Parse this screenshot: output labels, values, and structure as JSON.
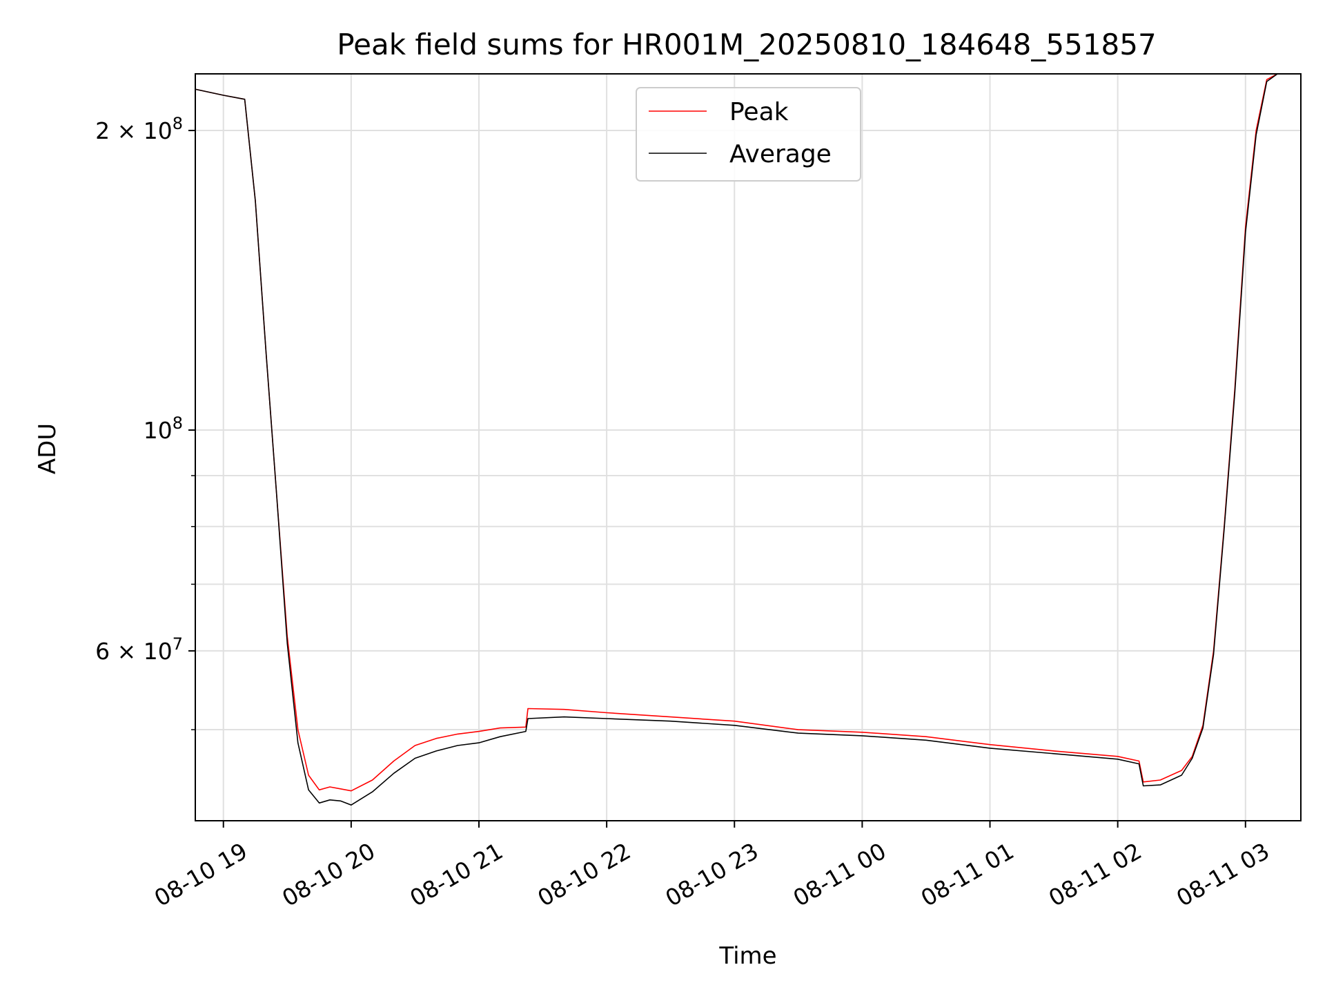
{
  "chart_data": {
    "type": "line",
    "title": "Peak field sums for HR001M_20250810_184648_551857",
    "xlabel": "Time",
    "ylabel": "ADU",
    "yscale": "log",
    "grid": true,
    "legend_position": "top-center",
    "x_ticks": [
      "08-10 19",
      "08-10 20",
      "08-10 21",
      "08-10 22",
      "08-10 23",
      "08-11 00",
      "08-11 01",
      "08-11 02",
      "08-11 03"
    ],
    "y_ticks": [
      {
        "value": 60000000,
        "mantissa": "6",
        "base": "10",
        "exp": "7"
      },
      {
        "value": 100000000,
        "mantissa": "",
        "base": "10",
        "exp": "8"
      },
      {
        "value": 200000000,
        "mantissa": "2",
        "base": "10",
        "exp": "8"
      }
    ],
    "xlim": [
      "2025-08-10T18:46:48",
      "2025-08-11T03:26:00"
    ],
    "ylim": [
      40500000,
      228000000
    ],
    "x": [
      "2025-08-10T18:47:00",
      "2025-08-10T19:00:00",
      "2025-08-10T19:10:00",
      "2025-08-10T19:15:00",
      "2025-08-10T19:20:00",
      "2025-08-10T19:25:00",
      "2025-08-10T19:30:00",
      "2025-08-10T19:35:00",
      "2025-08-10T19:40:00",
      "2025-08-10T19:45:00",
      "2025-08-10T19:50:00",
      "2025-08-10T19:55:00",
      "2025-08-10T20:00:00",
      "2025-08-10T20:10:00",
      "2025-08-10T20:20:00",
      "2025-08-10T20:30:00",
      "2025-08-10T20:40:00",
      "2025-08-10T20:50:00",
      "2025-08-10T21:00:00",
      "2025-08-10T21:10:00",
      "2025-08-10T21:22:00",
      "2025-08-10T21:23:00",
      "2025-08-10T21:40:00",
      "2025-08-10T22:00:00",
      "2025-08-10T22:30:00",
      "2025-08-10T23:00:00",
      "2025-08-10T23:30:00",
      "2025-08-11T00:00:00",
      "2025-08-11T00:30:00",
      "2025-08-11T01:00:00",
      "2025-08-11T01:30:00",
      "2025-08-11T02:00:00",
      "2025-08-11T02:10:00",
      "2025-08-11T02:12:00",
      "2025-08-11T02:20:00",
      "2025-08-11T02:30:00",
      "2025-08-11T02:35:00",
      "2025-08-11T02:40:00",
      "2025-08-11T02:45:00",
      "2025-08-11T02:50:00",
      "2025-08-11T02:55:00",
      "2025-08-11T03:00:00",
      "2025-08-11T03:05:00",
      "2025-08-11T03:10:00",
      "2025-08-11T03:15:00"
    ],
    "series": [
      {
        "name": "Peak",
        "color": "#ff0000",
        "values": [
          220000000,
          217000000,
          215000000,
          170000000,
          120000000,
          86000000,
          62000000,
          50000000,
          45000000,
          43500000,
          43800000,
          43600000,
          43400000,
          44500000,
          46500000,
          48200000,
          49000000,
          49500000,
          49800000,
          50200000,
          50300000,
          52500000,
          52400000,
          52000000,
          51500000,
          51000000,
          50000000,
          49700000,
          49200000,
          48300000,
          47600000,
          47000000,
          46500000,
          44300000,
          44500000,
          45500000,
          47000000,
          50500000,
          60000000,
          80000000,
          110000000,
          160000000,
          200000000,
          225000000,
          228000000
        ]
      },
      {
        "name": "Average",
        "color": "#000000",
        "values": [
          220000000,
          217000000,
          215000000,
          170000000,
          120000000,
          86000000,
          61000000,
          48500000,
          43500000,
          42200000,
          42500000,
          42400000,
          42000000,
          43300000,
          45200000,
          46800000,
          47600000,
          48200000,
          48500000,
          49200000,
          49800000,
          51300000,
          51500000,
          51300000,
          51000000,
          50500000,
          49600000,
          49300000,
          48800000,
          47900000,
          47300000,
          46700000,
          46200000,
          43900000,
          44000000,
          45000000,
          46800000,
          50200000,
          59500000,
          79500000,
          109000000,
          158000000,
          198000000,
          224000000,
          228000000
        ]
      }
    ]
  }
}
